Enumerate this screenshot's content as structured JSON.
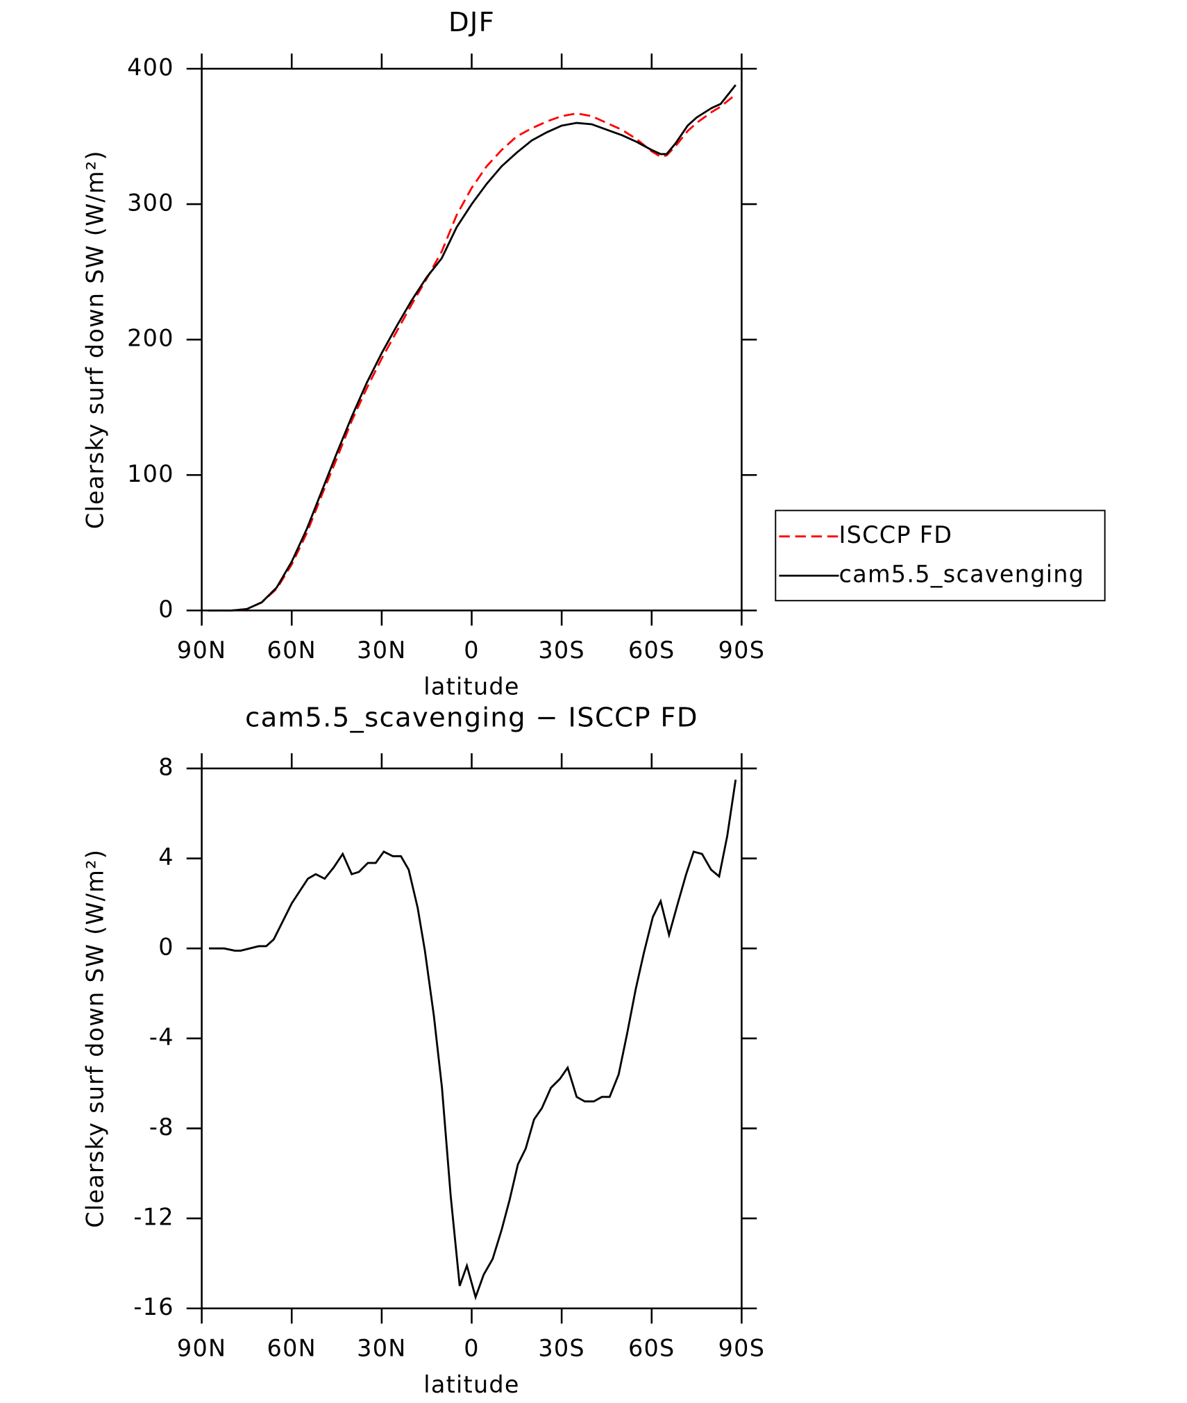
{
  "chart_data": [
    {
      "type": "line",
      "title": "DJF",
      "xlabel": "latitude",
      "ylabel": "Clearsky surf down SW (W/m²)",
      "x": [
        88,
        85,
        80,
        75,
        70,
        65,
        60,
        55,
        50,
        45,
        40,
        35,
        30,
        25,
        20,
        15,
        10,
        5,
        0,
        -5,
        -10,
        -15,
        -20,
        -25,
        -30,
        -35,
        -40,
        -45,
        -50,
        -55,
        -60,
        -63,
        -65,
        -68,
        -72,
        -75,
        -80,
        -83,
        -88
      ],
      "series": [
        {
          "name": "ISCCP FD",
          "color": "#ff0000",
          "dashed": true,
          "values": [
            0,
            0,
            0,
            1,
            6,
            16,
            34,
            57,
            85,
            112,
            140,
            164,
            186,
            206,
            226,
            245,
            265,
            292,
            312,
            328,
            340,
            350,
            356,
            361,
            365,
            367,
            365,
            360,
            355,
            348,
            339,
            335,
            336,
            343,
            354,
            360,
            368,
            372,
            381
          ]
        },
        {
          "name": "cam5.5_scavenging",
          "color": "#000000",
          "values": [
            0,
            0,
            0,
            1,
            6,
            17,
            36,
            60,
            88,
            116,
            143,
            168,
            190,
            210,
            229,
            246,
            260,
            283,
            300,
            315,
            328,
            338,
            347,
            353,
            358,
            360,
            359,
            355,
            351,
            346,
            340,
            337,
            337,
            345,
            358,
            364,
            371,
            374,
            388
          ]
        }
      ],
      "xlim": [
        90,
        -90
      ],
      "xticks": [
        {
          "value": 90,
          "label": "90N"
        },
        {
          "value": 60,
          "label": "60N"
        },
        {
          "value": 30,
          "label": "30N"
        },
        0,
        {
          "value": -30,
          "label": "30S"
        },
        {
          "value": -60,
          "label": "60S"
        },
        {
          "value": -90,
          "label": "90S"
        }
      ],
      "ylim": [
        0,
        400
      ],
      "yticks": [
        0,
        100,
        200,
        300,
        400
      ],
      "legend": "right"
    },
    {
      "type": "line",
      "title": "cam5.5_scavenging − ISCCP FD",
      "xlabel": "latitude",
      "ylabel": "Clearsky surf down SW (W/m²)",
      "x": [
        87.6,
        82.5,
        79,
        77,
        71,
        68.5,
        66,
        60,
        54.6,
        52,
        49,
        46,
        43,
        40,
        37.6,
        34.6,
        32,
        29.3,
        26.3,
        23.6,
        21,
        18,
        15.6,
        12.6,
        9.9,
        7,
        4,
        1.6,
        -1.3,
        -4,
        -7,
        -10,
        -12.6,
        -15.4,
        -18,
        -20.8,
        -23.4,
        -26.4,
        -29.4,
        -32,
        -35,
        -37.7,
        -40.7,
        -43.4,
        -46,
        -49,
        -51.8,
        -54.7,
        -57.4,
        -60.4,
        -63,
        -65.8,
        -68.5,
        -71.5,
        -74,
        -76.8,
        -79.8,
        -82.5,
        -85.2,
        -88
      ],
      "series": [
        {
          "color": "#000000",
          "values": [
            0,
            0,
            -0.1,
            -0.1,
            0.1,
            0.1,
            0.4,
            2,
            3.1,
            3.3,
            3.1,
            3.6,
            4.2,
            3.3,
            3.4,
            3.8,
            3.8,
            4.3,
            4.1,
            4.1,
            3.5,
            1.8,
            -0.1,
            -3,
            -6.2,
            -11,
            -15,
            -14.1,
            -15.5,
            -14.5,
            -13.8,
            -12.5,
            -11.2,
            -9.6,
            -8.9,
            -7.6,
            -7.1,
            -6.2,
            -5.8,
            -5.3,
            -6.6,
            -6.8,
            -6.8,
            -6.6,
            -6.6,
            -5.6,
            -3.8,
            -1.8,
            -0.2,
            1.4,
            2.1,
            0.6,
            1.9,
            3.3,
            4.3,
            4.2,
            3.5,
            3.2,
            5,
            7.5
          ]
        }
      ],
      "xlim": [
        90,
        -90
      ],
      "xticks": [
        {
          "value": 90,
          "label": "90N"
        },
        {
          "value": 60,
          "label": "60N"
        },
        {
          "value": 30,
          "label": "30N"
        },
        0,
        {
          "value": -30,
          "label": "30S"
        },
        {
          "value": -60,
          "label": "60S"
        },
        {
          "value": -90,
          "label": "90S"
        }
      ],
      "ylim": [
        -16,
        8
      ],
      "yticks": [
        -16,
        -12,
        -8,
        -4,
        0,
        4,
        8
      ]
    }
  ]
}
